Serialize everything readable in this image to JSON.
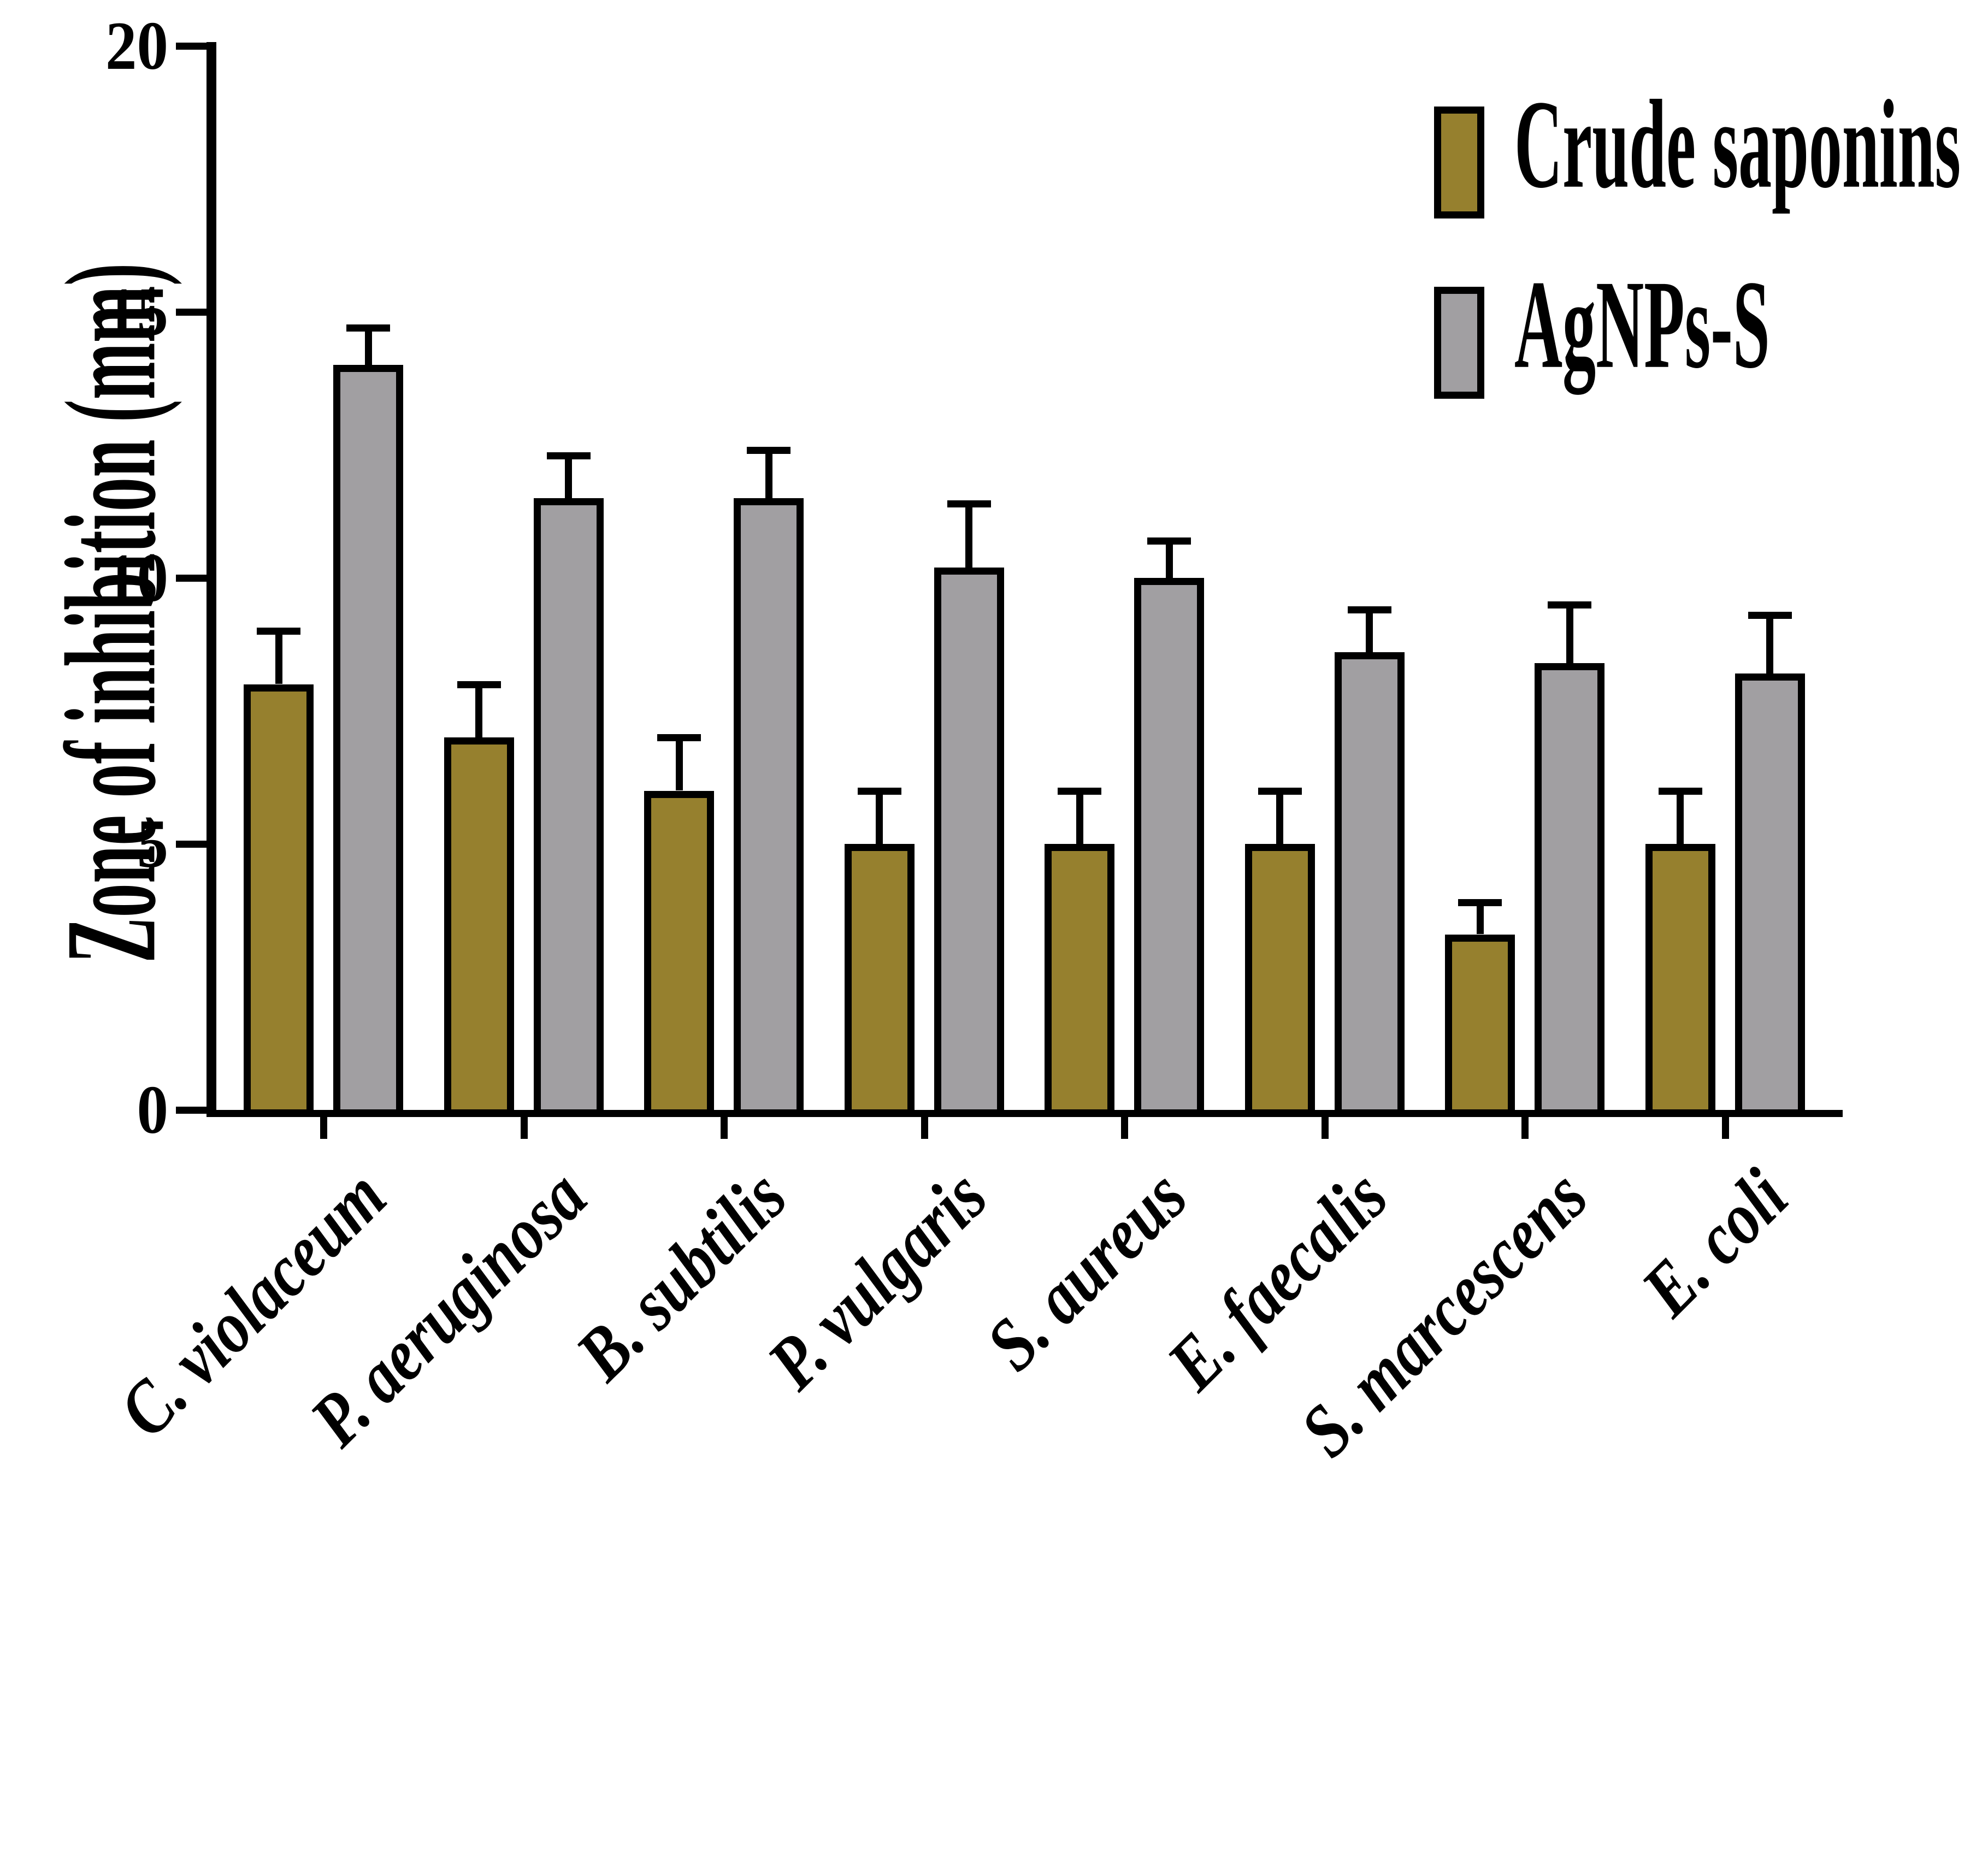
{
  "figure": {
    "background": "#FFFFFF",
    "axis_color": "#000000"
  },
  "legend": {
    "items": [
      {
        "label": "Crude saponins",
        "color": "#96802E"
      },
      {
        "label": "AgNPs-S",
        "color": "#A19FA2"
      }
    ]
  },
  "chart_data": {
    "type": "bar",
    "title": "",
    "xlabel": "",
    "ylabel": "Zone of inhibition (mm)",
    "ylim": [
      0,
      20
    ],
    "yticks": [
      0,
      5,
      10,
      15,
      20
    ],
    "grid": false,
    "legend_position": "top-right",
    "bar_border_color": "#000000",
    "error_bars": "upper, with caps",
    "categories": [
      "C. violaceum",
      "P. aeruginosa",
      "B. subtilis",
      "P. vulgaris",
      "S. aureus",
      "E. faecalis",
      "S. marcescens",
      "E. coli"
    ],
    "series": [
      {
        "name": "Crude saponins",
        "color": "#96802E",
        "values": [
          8.0,
          7.0,
          6.0,
          5.0,
          5.0,
          5.0,
          3.3,
          5.0
        ],
        "errors": [
          1.0,
          1.0,
          1.0,
          1.0,
          1.0,
          1.0,
          0.6,
          1.0
        ]
      },
      {
        "name": "AgNPs-S",
        "color": "#A19FA2",
        "values": [
          14.0,
          11.5,
          11.5,
          10.2,
          10.0,
          8.6,
          8.4,
          8.2
        ],
        "errors": [
          0.7,
          0.8,
          0.9,
          1.2,
          0.7,
          0.8,
          1.1,
          1.1
        ]
      }
    ]
  }
}
